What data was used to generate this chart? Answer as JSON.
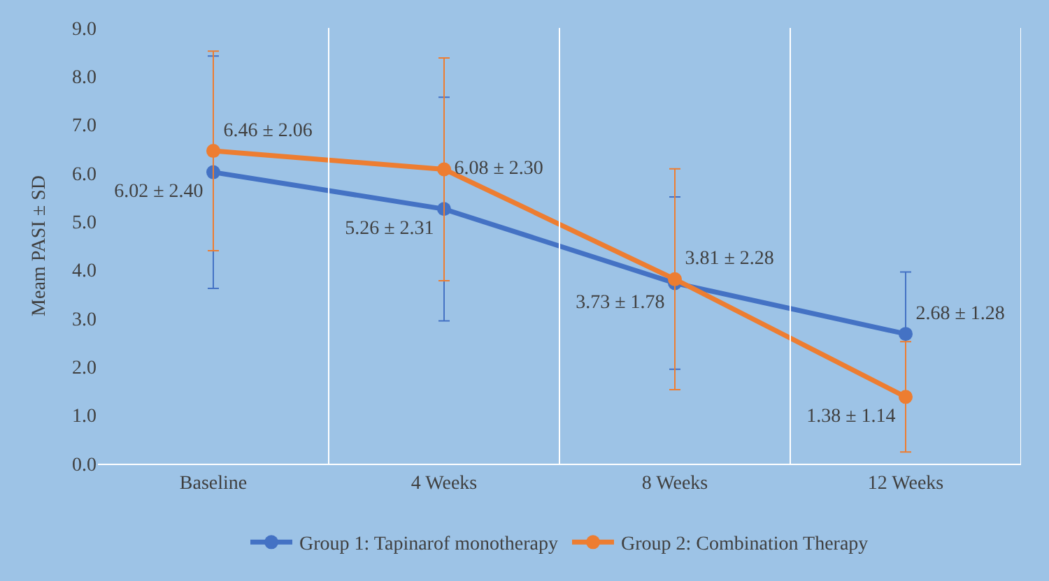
{
  "chart_data": {
    "type": "line",
    "ylabel": "Meam PASI ± SD",
    "categories": [
      "Baseline",
      "4 Weeks",
      "8 Weeks",
      "12 Weeks"
    ],
    "series": [
      {
        "name": "Group 1: Tapinarof monotherapy",
        "color": "#4472c4",
        "values": [
          6.02,
          5.26,
          3.73,
          2.68
        ],
        "errors": [
          2.4,
          2.31,
          1.78,
          1.28
        ],
        "value_labels": [
          "6.02 ± 2.40",
          "5.26 ± 2.31",
          "3.73 ± 1.78",
          "2.68 ± 1.28"
        ]
      },
      {
        "name": "Group 2: Combination Therapy",
        "color": "#ed7d31",
        "values": [
          6.46,
          6.08,
          3.81,
          1.38
        ],
        "errors": [
          2.06,
          2.3,
          2.28,
          1.14
        ],
        "value_labels": [
          "6.46 ± 2.06",
          "6.08 ± 2.30",
          "3.81 ± 2.28",
          "1.38 ± 1.14"
        ]
      }
    ],
    "ylim": [
      0,
      9
    ],
    "yticks": [
      {
        "value": 0,
        "label": "0.0"
      },
      {
        "value": 1,
        "label": "1.0"
      },
      {
        "value": 2,
        "label": "2.0"
      },
      {
        "value": 3,
        "label": "3.0"
      },
      {
        "value": 4,
        "label": "4.0"
      },
      {
        "value": 5,
        "label": "5.0"
      },
      {
        "value": 6,
        "label": "6.0"
      },
      {
        "value": 7,
        "label": "7.0"
      },
      {
        "value": 8,
        "label": "8.0"
      },
      {
        "value": 9,
        "label": "9.0"
      }
    ],
    "grid": "x",
    "legend": "bottom",
    "marker": "circle",
    "line_style": "solid"
  }
}
